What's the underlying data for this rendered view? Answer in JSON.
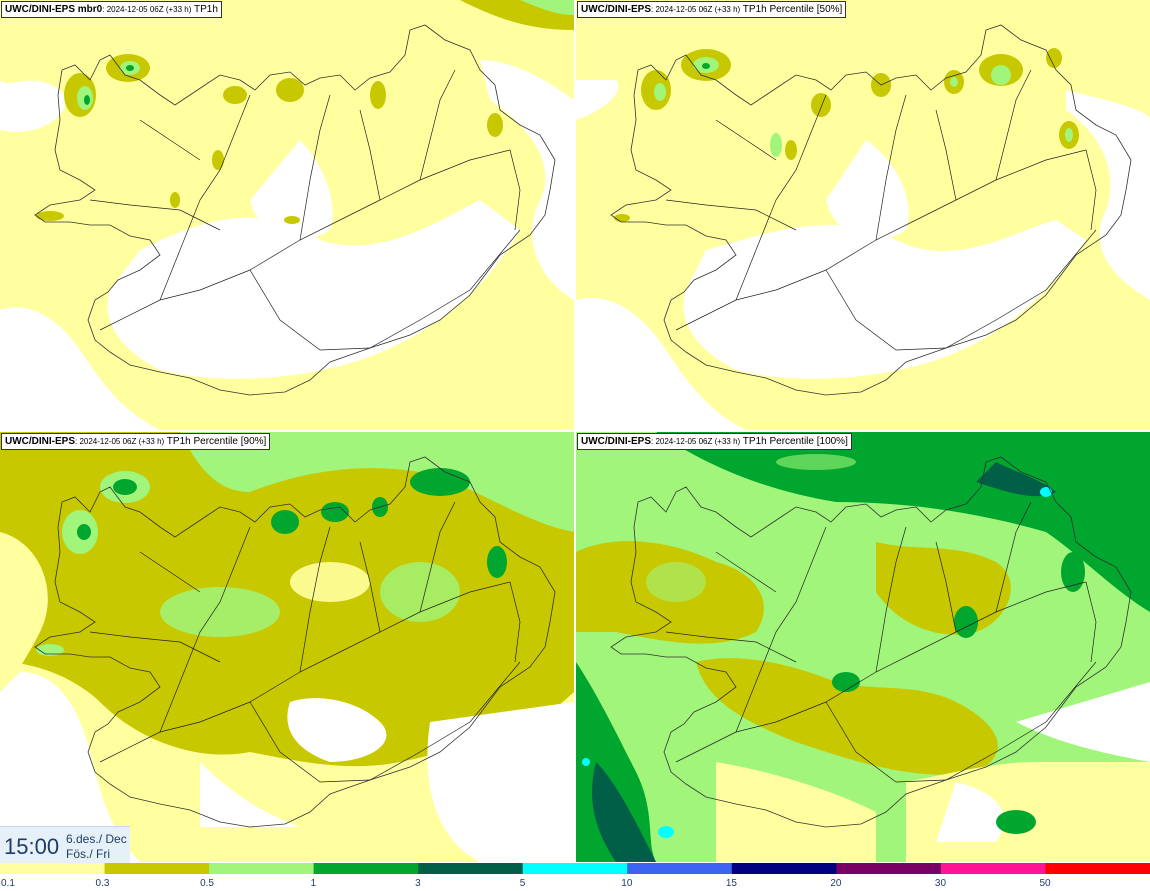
{
  "panels": [
    {
      "model": "UWC/DINI-EPS mbr0",
      "run": "2024-12-05 06Z (+33 h)",
      "field": "TP1h"
    },
    {
      "model": "UWC/DINI-EPS",
      "run": "2024-12-05 06Z (+33 h)",
      "field": "TP1h Percentile [50%]"
    },
    {
      "model": "UWC/DINI-EPS",
      "run": "2024-12-05 06Z (+33 h)",
      "field": "TP1h Percentile [90%]"
    },
    {
      "model": "UWC/DINI-EPS",
      "run": "2024-12-05 06Z (+33 h)",
      "field": "TP1h Percentile [100%]"
    }
  ],
  "valid_time": {
    "clock": "15:00",
    "date": "6.des./ Dec",
    "day": "Fös./ Fri"
  },
  "legend": {
    "labels": [
      "0.1",
      "0.3",
      "0.5",
      "1",
      "3",
      "5",
      "10",
      "15",
      "20",
      "30",
      "50"
    ],
    "colors": [
      "#ffff9f",
      "#c8c800",
      "#a0f57a",
      "#00a62d",
      "#005f46",
      "#00ffff",
      "#3c64f0",
      "#000080",
      "#780064",
      "#ff1496",
      "#ff0000"
    ]
  },
  "colors": {
    "background": "#ffffff",
    "coast": "#333333",
    "time_text": "#1f3d66"
  }
}
